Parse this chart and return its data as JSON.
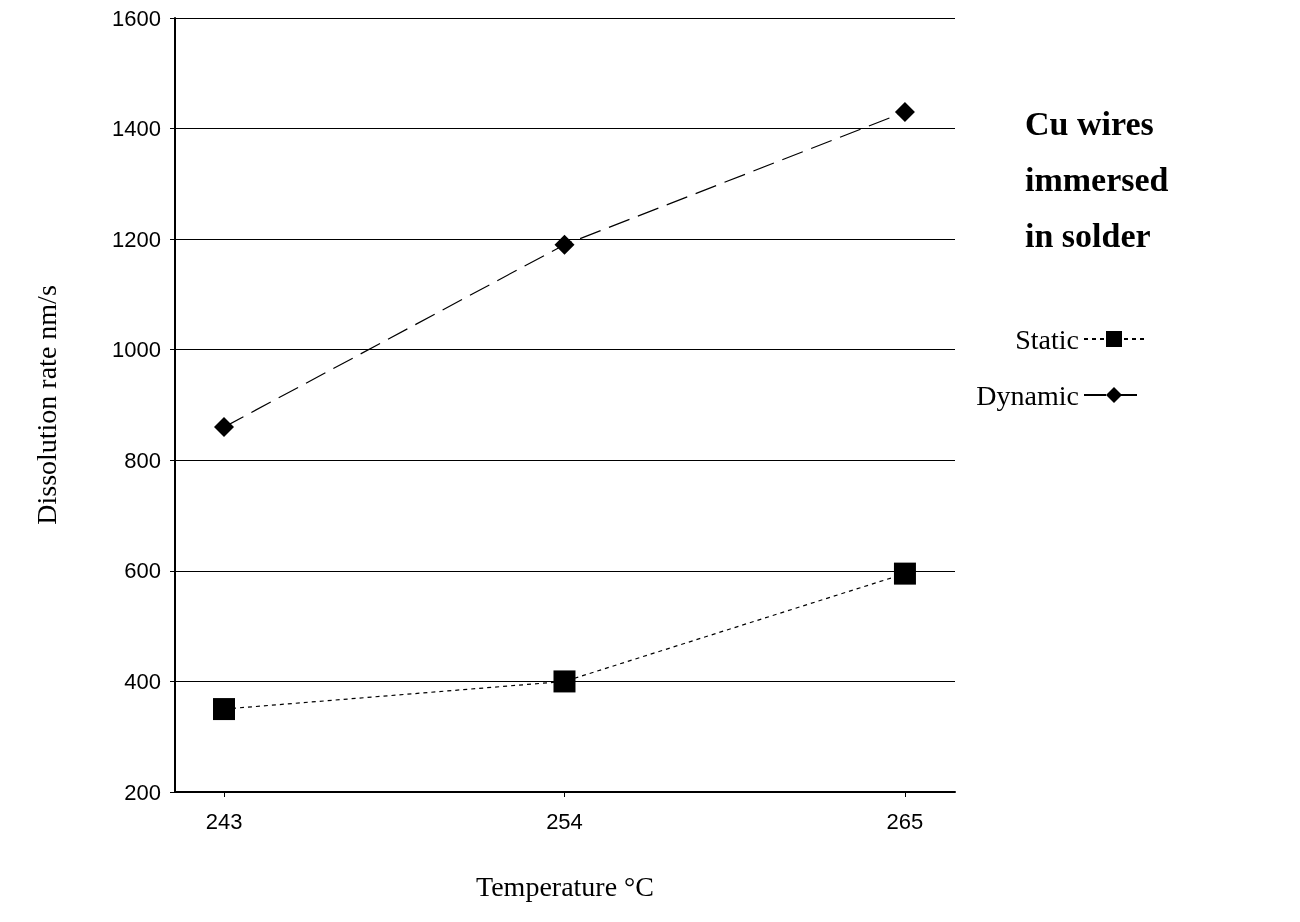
{
  "chart_data": {
    "type": "line",
    "xlabel": "Temperature °C",
    "ylabel": "Dissolution rate nm/s",
    "categories": [
      "243",
      "254",
      "265"
    ],
    "series": [
      {
        "name": "Static",
        "color": "#000000",
        "values": [
          350,
          400,
          595
        ],
        "marker": "square",
        "line_style": "dotted"
      },
      {
        "name": "Dynamic",
        "color": "#000000",
        "values": [
          860,
          1190,
          1430
        ],
        "marker": "diamond",
        "line_style": "dashed"
      }
    ],
    "ylim": [
      200,
      1600
    ],
    "yticks": [
      200,
      400,
      600,
      800,
      1000,
      1200,
      1400,
      1600
    ],
    "grid": "y",
    "legend": "right",
    "annotations": [
      "Cu wires immersed in solder"
    ]
  }
}
